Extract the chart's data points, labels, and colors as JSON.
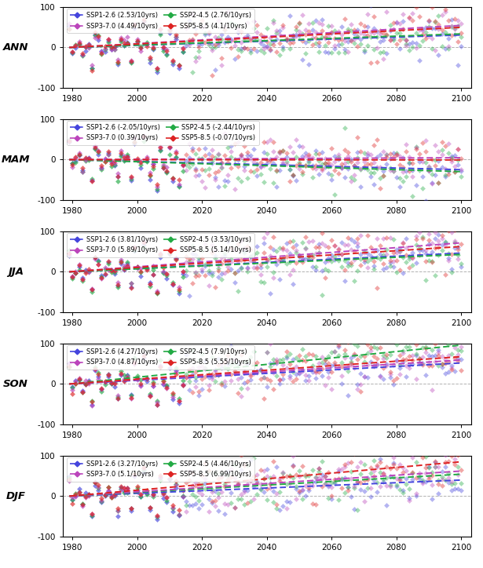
{
  "panels": [
    "ANN",
    "MAM",
    "JJA",
    "SON",
    "DJF"
  ],
  "scenarios": [
    "SSP1-2.6",
    "SSP2-4.5",
    "SSP3-7.0",
    "SSP5-8.5"
  ],
  "colors": {
    "SSP1-2.6": "#4444dd",
    "SSP2-4.5": "#22aa44",
    "SSP3-7.0": "#bb44bb",
    "SSP5-8.5": "#dd2222"
  },
  "trends": {
    "ANN": {
      "SSP1-2.6": 2.53,
      "SSP2-4.5": 2.76,
      "SSP3-7.0": 4.49,
      "SSP5-8.5": 4.1
    },
    "MAM": {
      "SSP1-2.6": -2.05,
      "SSP2-4.5": -2.44,
      "SSP3-7.0": 0.39,
      "SSP5-8.5": -0.07
    },
    "JJA": {
      "SSP1-2.6": 3.81,
      "SSP2-4.5": 3.53,
      "SSP3-7.0": 5.89,
      "SSP5-8.5": 5.14
    },
    "SON": {
      "SSP1-2.6": 4.27,
      "SSP2-4.5": 7.9,
      "SSP3-7.0": 4.87,
      "SSP5-8.5": 5.55
    },
    "DJF": {
      "SSP1-2.6": 3.27,
      "SSP2-4.5": 4.46,
      "SSP3-7.0": 5.1,
      "SSP5-8.5": 6.99
    }
  },
  "year_hist_start": 1979,
  "year_hist_end": 2014,
  "year_fut_start": 2015,
  "year_fut_end": 2100,
  "ylim": [
    -100,
    100
  ],
  "yticks": [
    -100,
    0,
    100
  ],
  "xticks": [
    1980,
    2000,
    2020,
    2040,
    2060,
    2080,
    2100
  ],
  "noise_std": 28,
  "scatter_alpha_hist": 0.65,
  "scatter_alpha_fut": 0.4,
  "scatter_size": 12,
  "line_lw": 1.4
}
